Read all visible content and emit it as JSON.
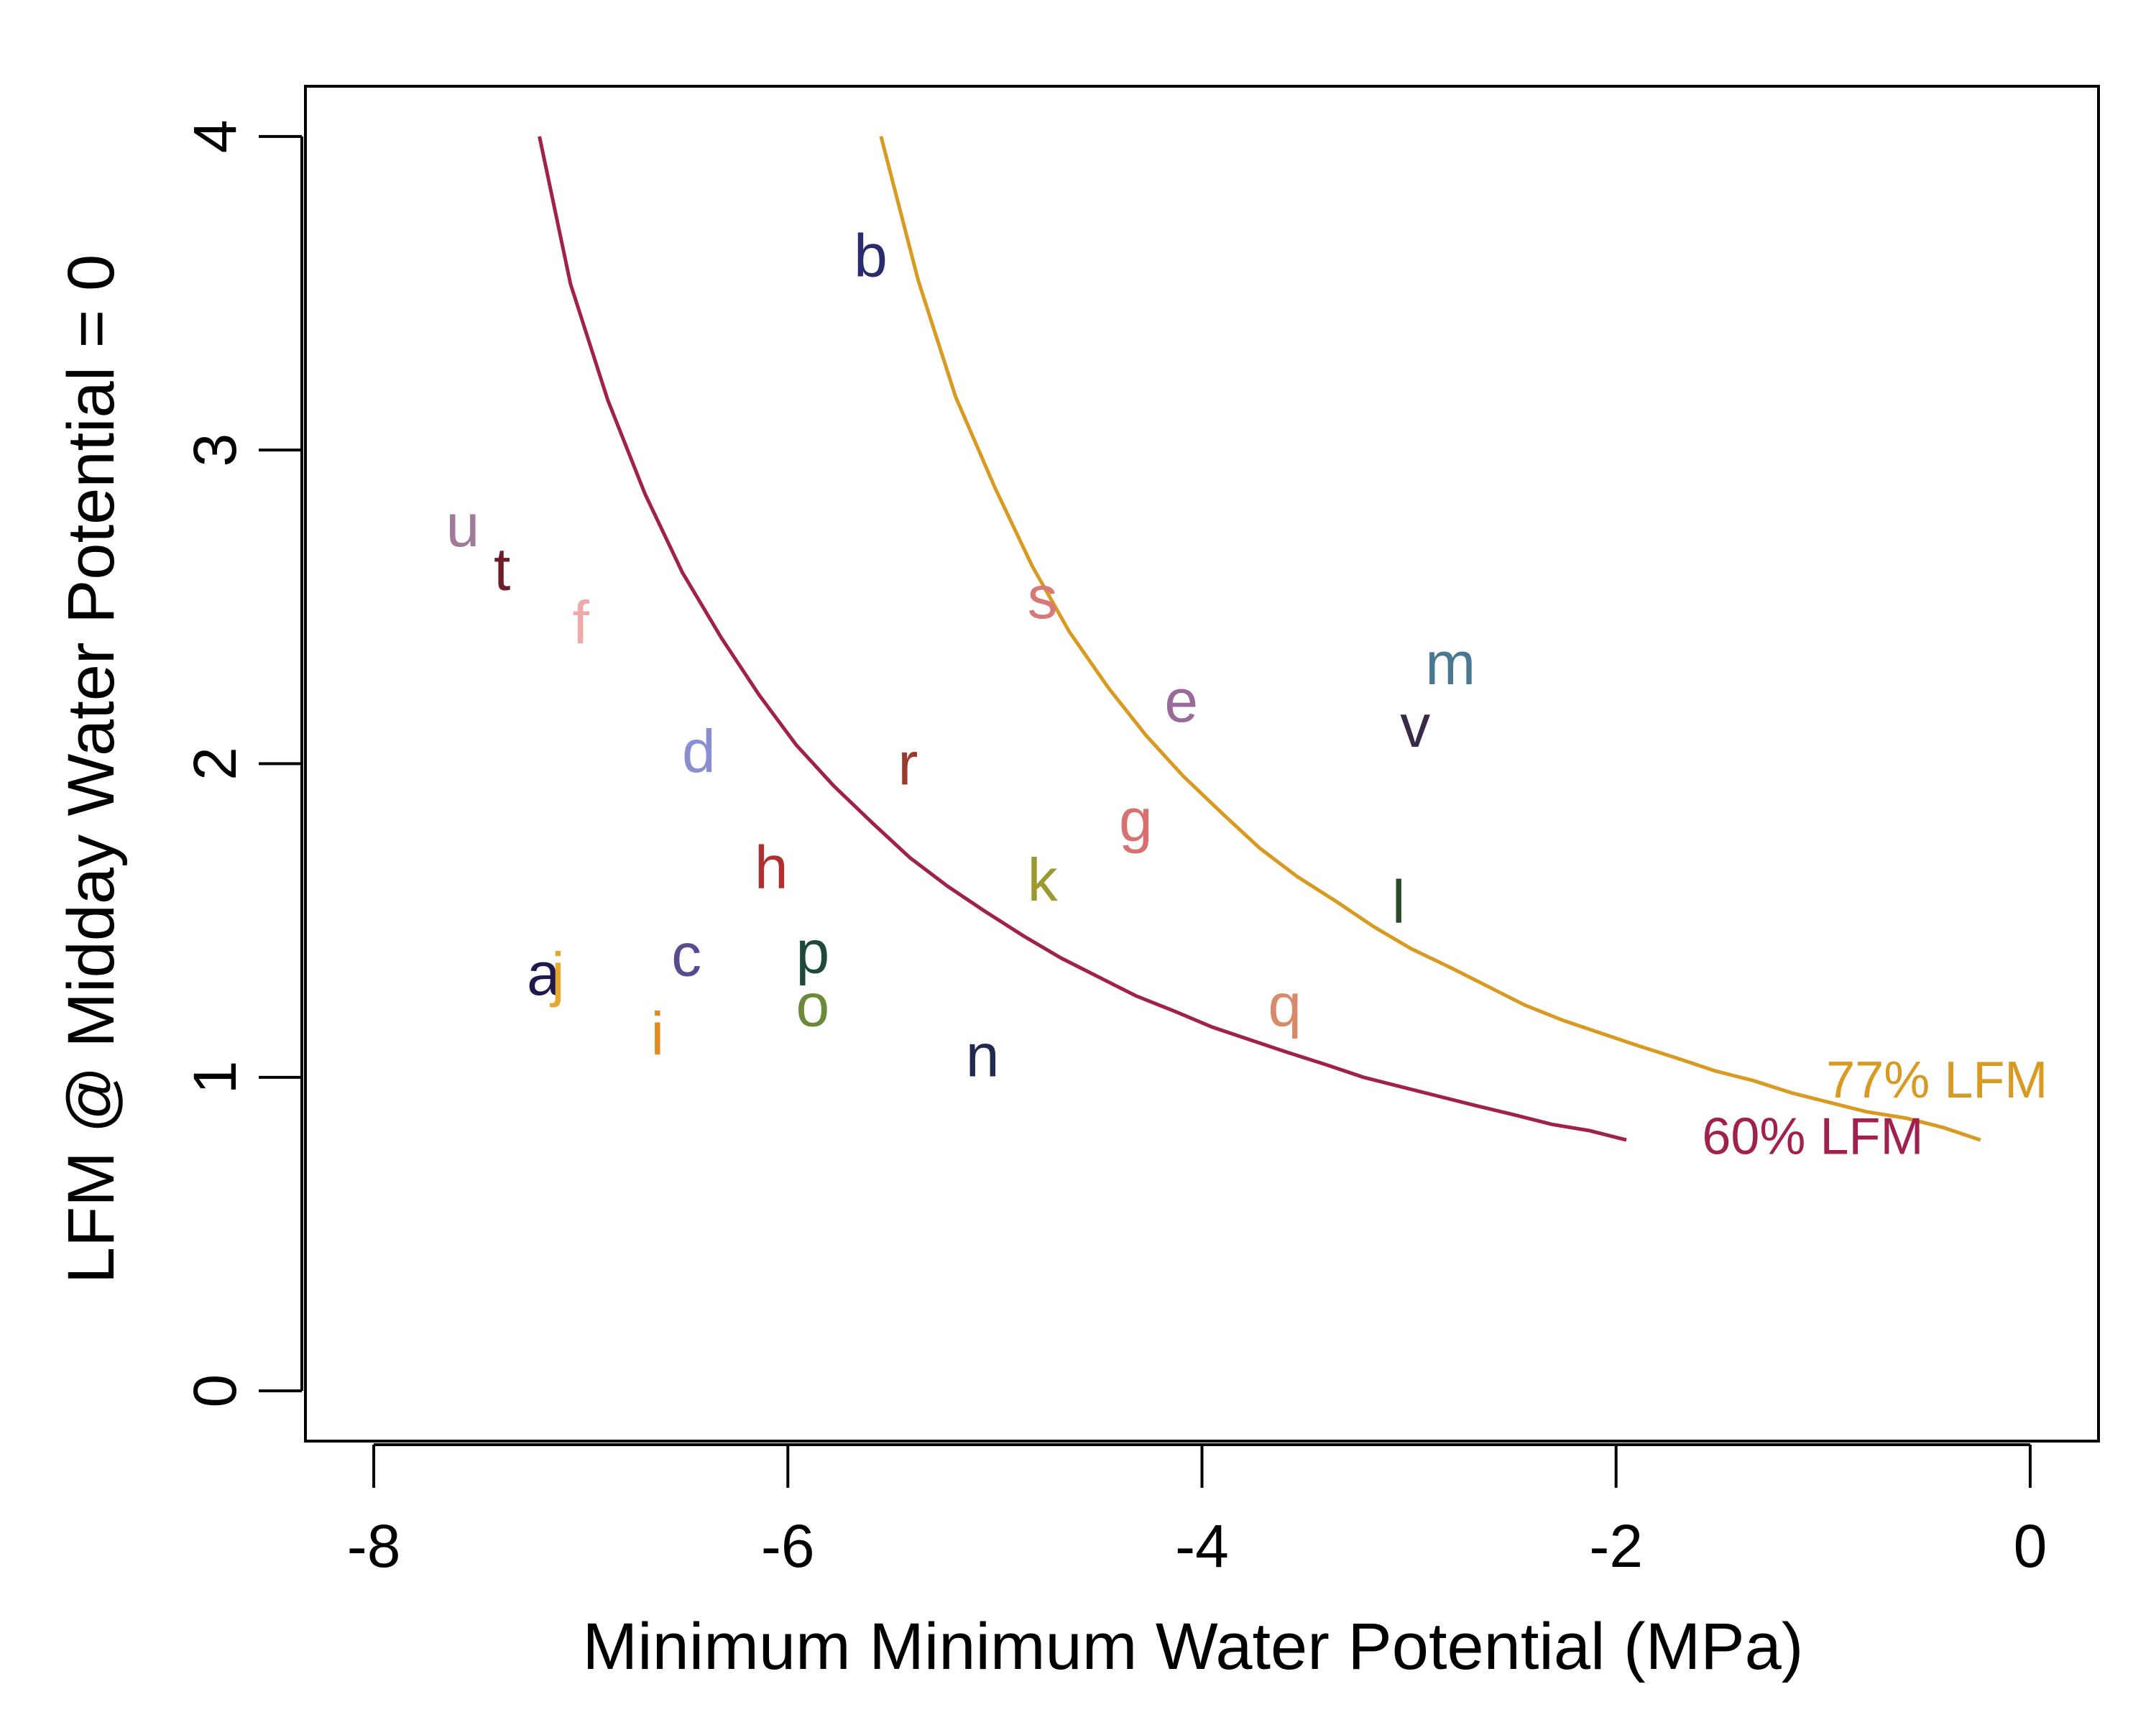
{
  "chart_data": {
    "type": "scatter",
    "title": "",
    "xlabel": "Minimum Minimum Water Potential (MPa)",
    "ylabel": "LFM @ Midday Water Potential = 0",
    "xlim": [
      -8.33,
      0.33
    ],
    "ylim": [
      -0.16,
      4.16
    ],
    "xticks": [
      -8,
      -6,
      -4,
      -2,
      0
    ],
    "xtick_labels": [
      "-8",
      "-6",
      "-4",
      "-2",
      "0"
    ],
    "yticks": [
      0,
      1,
      2,
      3,
      4
    ],
    "ytick_labels": [
      "0",
      "1",
      "2",
      "3",
      "4"
    ],
    "grid": false,
    "legend": "none",
    "points": [
      {
        "label": "a",
        "x": -7.18,
        "y": 1.33,
        "color": "#1f1a4e"
      },
      {
        "label": "b",
        "x": -5.6,
        "y": 3.62,
        "color": "#2a2a6e"
      },
      {
        "label": "c",
        "x": -6.49,
        "y": 1.39,
        "color": "#5a4a8e"
      },
      {
        "label": "d",
        "x": -6.43,
        "y": 2.04,
        "color": "#8a8ed0"
      },
      {
        "label": "e",
        "x": -4.1,
        "y": 2.2,
        "color": "#9a6a9a"
      },
      {
        "label": "f",
        "x": -7.0,
        "y": 2.45,
        "color": "#f0a8a8"
      },
      {
        "label": "g",
        "x": -4.32,
        "y": 1.82,
        "color": "#d87070"
      },
      {
        "label": "h",
        "x": -6.08,
        "y": 1.67,
        "color": "#b03030"
      },
      {
        "label": "i",
        "x": -6.63,
        "y": 1.14,
        "color": "#e08a20"
      },
      {
        "label": "j",
        "x": -7.11,
        "y": 1.33,
        "color": "#e8a830"
      },
      {
        "label": "k",
        "x": -4.77,
        "y": 1.63,
        "color": "#9a9a30"
      },
      {
        "label": "l",
        "x": -3.05,
        "y": 1.56,
        "color": "#2a4a2a"
      },
      {
        "label": "m",
        "x": -2.8,
        "y": 2.32,
        "color": "#4a7890"
      },
      {
        "label": "n",
        "x": -5.06,
        "y": 1.07,
        "color": "#1f2a4e"
      },
      {
        "label": "o",
        "x": -5.88,
        "y": 1.23,
        "color": "#6a8a3a"
      },
      {
        "label": "p",
        "x": -5.88,
        "y": 1.4,
        "color": "#1f4a3a"
      },
      {
        "label": "q",
        "x": -3.6,
        "y": 1.23,
        "color": "#d88a6a"
      },
      {
        "label": "r",
        "x": -5.42,
        "y": 2.0,
        "color": "#9a3a2a"
      },
      {
        "label": "s",
        "x": -4.77,
        "y": 2.53,
        "color": "#d87878"
      },
      {
        "label": "t",
        "x": -7.38,
        "y": 2.62,
        "color": "#6a1f2a"
      },
      {
        "label": "u",
        "x": -7.57,
        "y": 2.76,
        "color": "#a07a9a"
      },
      {
        "label": "v",
        "x": -2.97,
        "y": 2.12,
        "color": "#3a2a4a"
      }
    ],
    "series": [
      {
        "name": "60% LFM",
        "color": "#a0204e",
        "x": [
          -7.2,
          -7.05,
          -6.87,
          -6.69,
          -6.51,
          -6.32,
          -6.14,
          -5.96,
          -5.78,
          -5.59,
          -5.41,
          -5.23,
          -5.05,
          -4.86,
          -4.68,
          -4.5,
          -4.32,
          -4.13,
          -3.95,
          -3.77,
          -3.59,
          -3.4,
          -3.22,
          -3.04,
          -2.86,
          -2.68,
          -2.49,
          -2.31,
          -2.13,
          -1.95
        ],
        "y": [
          4.0,
          3.53,
          3.16,
          2.86,
          2.61,
          2.4,
          2.22,
          2.06,
          1.93,
          1.81,
          1.7,
          1.61,
          1.53,
          1.45,
          1.38,
          1.32,
          1.26,
          1.21,
          1.16,
          1.12,
          1.08,
          1.04,
          1.0,
          0.97,
          0.94,
          0.91,
          0.88,
          0.85,
          0.83,
          0.8
        ]
      },
      {
        "name": "77% LFM",
        "color": "#d89a20",
        "x": [
          -5.55,
          -5.37,
          -5.19,
          -5.0,
          -4.82,
          -4.64,
          -4.45,
          -4.27,
          -4.09,
          -3.9,
          -3.72,
          -3.54,
          -3.35,
          -3.17,
          -2.99,
          -2.8,
          -2.62,
          -2.44,
          -2.25,
          -2.07,
          -1.89,
          -1.7,
          -1.52,
          -1.34,
          -1.15,
          -0.97,
          -0.79,
          -0.6,
          -0.42,
          -0.24
        ],
        "y": [
          4.0,
          3.54,
          3.17,
          2.88,
          2.63,
          2.42,
          2.24,
          2.09,
          1.96,
          1.84,
          1.73,
          1.64,
          1.56,
          1.48,
          1.41,
          1.35,
          1.29,
          1.23,
          1.18,
          1.14,
          1.1,
          1.06,
          1.02,
          0.99,
          0.95,
          0.92,
          0.89,
          0.87,
          0.84,
          0.8
        ]
      }
    ],
    "curve_labels": [
      {
        "text": "60% LFM",
        "x": -1.05,
        "y": 0.81,
        "color": "#a0204e"
      },
      {
        "text": "77% LFM",
        "x": -0.45,
        "y": 0.99,
        "color": "#d89a20"
      }
    ]
  }
}
